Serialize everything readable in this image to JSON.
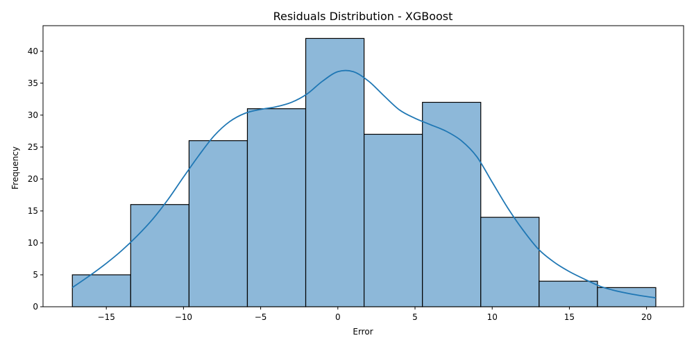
{
  "chart_data": {
    "type": "bar",
    "title": "Residuals Distribution - XGBoost",
    "xlabel": "Error",
    "ylabel": "Frequency",
    "xlim": [
      -19.1,
      22.4
    ],
    "ylim": [
      0,
      44
    ],
    "grid": false,
    "bin_edges": [
      -17.2,
      -13.42,
      -9.64,
      -5.86,
      -2.08,
      1.7,
      5.48,
      9.26,
      13.04,
      16.82,
      20.6
    ],
    "values": [
      5,
      16,
      26,
      31,
      42,
      27,
      32,
      14,
      4,
      3
    ],
    "kde": {
      "x": [
        -17.2,
        -16,
        -15,
        -14,
        -13,
        -12,
        -11,
        -10,
        -9,
        -8,
        -7,
        -6,
        -5,
        -4,
        -3,
        -2,
        -1,
        0,
        1,
        2,
        3,
        4,
        5,
        6,
        7,
        8,
        9,
        10,
        11,
        12,
        13,
        14,
        15,
        16,
        17,
        18,
        19,
        20,
        20.6
      ],
      "y": [
        3.0,
        5.0,
        6.8,
        8.8,
        11.1,
        13.7,
        16.8,
        20.3,
        23.7,
        26.8,
        29.0,
        30.3,
        30.9,
        31.3,
        32.0,
        33.3,
        35.3,
        36.8,
        36.8,
        35.3,
        33.0,
        30.8,
        29.5,
        28.5,
        27.5,
        26.0,
        23.5,
        19.5,
        15.5,
        12.0,
        9.0,
        7.0,
        5.5,
        4.3,
        3.2,
        2.5,
        2.0,
        1.6,
        1.4
      ]
    },
    "xticks": [
      -15,
      -10,
      -5,
      0,
      5,
      10,
      15,
      20
    ],
    "xtick_labels": [
      "−15",
      "−10",
      "−5",
      "0",
      "5",
      "10",
      "15",
      "20"
    ],
    "yticks": [
      0,
      5,
      10,
      15,
      20,
      25,
      30,
      35,
      40
    ],
    "ytick_labels": [
      "0",
      "5",
      "10",
      "15",
      "20",
      "25",
      "30",
      "35",
      "40"
    ],
    "colors": {
      "bar_fill": "#8db8d9",
      "bar_edge": "#000000",
      "kde_line": "#1f77b4",
      "axis": "#000000"
    }
  }
}
